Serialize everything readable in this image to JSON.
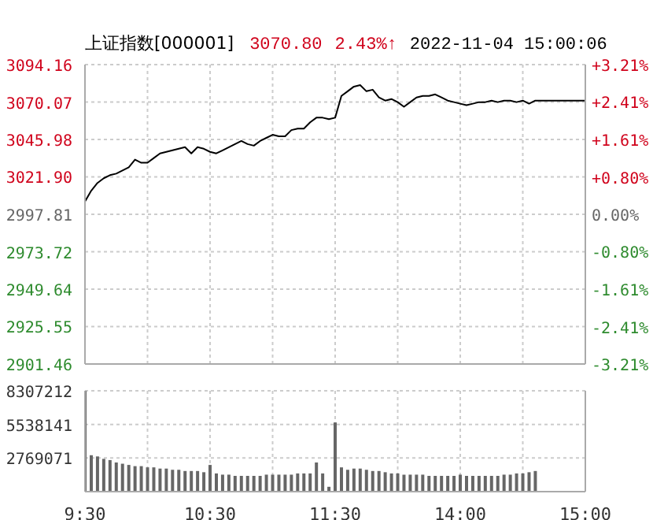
{
  "chart_data": [
    {
      "type": "line",
      "title": "上证指数[000001]",
      "annotations": [
        "3070.80",
        "2.43%↑",
        "2022-11-04 15:00:06"
      ],
      "categories": [
        null,
        null,
        null,
        null,
        null,
        null,
        null,
        null,
        null,
        null,
        null,
        null,
        null,
        null,
        null,
        null,
        null,
        null,
        null,
        null,
        null,
        null,
        null,
        null,
        null,
        null,
        null,
        null,
        null,
        null,
        null,
        null,
        null,
        null,
        null,
        null,
        null,
        null,
        null,
        null,
        null,
        null,
        null,
        null,
        null,
        null,
        null,
        null,
        null,
        null,
        null,
        null,
        null,
        null,
        null,
        null,
        null,
        null,
        null,
        null,
        null,
        null,
        null,
        null,
        null,
        null,
        null,
        null,
        null,
        null,
        null,
        null,
        null,
        null,
        null,
        null,
        null,
        null,
        null,
        null,
        null
      ],
      "series": [
        {
          "color": "#000000",
          "values": [
            3006,
            3013,
            3018,
            3021,
            3023,
            3024,
            3026,
            3028,
            3033,
            3031,
            3031,
            3034,
            3037,
            3038,
            3039,
            3040,
            3041,
            3037,
            3041,
            3040,
            3038,
            3037,
            3039,
            3041,
            3043,
            3045,
            3043,
            3042,
            3045,
            3047,
            3049,
            3048,
            3048,
            3052,
            3053,
            3053,
            3057,
            3060,
            3060,
            3059,
            3060,
            3074,
            3077,
            3080,
            3081,
            3077,
            3078,
            3073,
            3071,
            3072,
            3070,
            3067,
            3070,
            3073,
            3074,
            3074,
            3075,
            3073,
            3071,
            3070,
            3069,
            3068,
            3069,
            3070,
            3070,
            3071,
            3070,
            3071,
            3071,
            3070,
            3071,
            3069,
            3071,
            3071,
            3071,
            3071,
            3071,
            3071,
            3071,
            3071,
            3071
          ]
        }
      ],
      "ylim": [
        2901.46,
        3094.16
      ],
      "yticks": [
        3094.16,
        3070.07,
        3045.98,
        {
          "value": 3021.9,
          "label": "3021.90"
        },
        2997.81,
        2973.72,
        2949.64,
        2925.55,
        2901.46
      ],
      "y2lim": [
        -3.21,
        3.21
      ],
      "y2ticks": [
        {
          "value": 3.21,
          "label": "+3.21%"
        },
        {
          "value": 2.41,
          "label": "+2.41%"
        },
        {
          "value": 1.61,
          "label": "+1.61%"
        },
        {
          "value": 0.8,
          "label": "+0.80%"
        },
        {
          "value": 0,
          "label": "0.00%"
        },
        {
          "value": -0.8,
          "label": "-0.80%"
        },
        {
          "value": -1.61,
          "label": "-1.61%"
        },
        {
          "value": -2.41,
          "label": "-2.41%"
        },
        {
          "value": -3.21,
          "label": "-3.21%"
        }
      ],
      "grid": true,
      "line_style": "solid"
    },
    {
      "type": "bar",
      "categories": [
        "9:30",
        null,
        null,
        null,
        null,
        null,
        null,
        null,
        null,
        null,
        null,
        null,
        null,
        null,
        null,
        null,
        null,
        null,
        null,
        null,
        "10:30",
        null,
        null,
        null,
        null,
        null,
        null,
        null,
        null,
        null,
        null,
        null,
        null,
        null,
        null,
        null,
        null,
        null,
        null,
        null,
        "11:30",
        null,
        null,
        null,
        null,
        null,
        null,
        null,
        null,
        null,
        null,
        null,
        null,
        null,
        null,
        null,
        null,
        null,
        null,
        null,
        "14:00",
        null,
        null,
        null,
        null,
        null,
        null,
        null,
        null,
        null,
        null,
        null,
        null,
        null,
        null,
        null,
        null,
        null,
        null,
        null,
        "15:00"
      ],
      "series": [
        {
          "color": "#666666",
          "values": [
            8300000,
            3000000,
            2900000,
            2700000,
            2600000,
            2400000,
            2300000,
            2200000,
            2100000,
            2100000,
            2000000,
            2000000,
            1900000,
            1900000,
            1800000,
            1800000,
            1700000,
            1700000,
            1700000,
            1600000,
            2200000,
            1500000,
            1400000,
            1400000,
            1300000,
            1300000,
            1300000,
            1300000,
            1300000,
            1400000,
            1400000,
            1400000,
            1400000,
            1400000,
            1500000,
            1500000,
            1500000,
            2400000,
            1500000,
            400000,
            5700000,
            2000000,
            1800000,
            1900000,
            1900000,
            1800000,
            1700000,
            1700000,
            1600000,
            1500000,
            1500000,
            1400000,
            1400000,
            1400000,
            1400000,
            1300000,
            1300000,
            1300000,
            1300000,
            1300000,
            1400000,
            1300000,
            1300000,
            1300000,
            1300000,
            1300000,
            1300000,
            1400000,
            1400000,
            1500000,
            1500000,
            1600000,
            1700000,
            null,
            null,
            null,
            null,
            null,
            null,
            null,
            null
          ]
        }
      ],
      "ylim": [
        0,
        8307212
      ],
      "yticks": [
        2769071,
        5538141,
        8307212
      ],
      "grid": true
    }
  ]
}
